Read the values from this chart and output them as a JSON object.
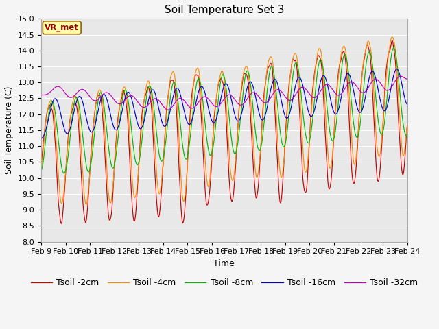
{
  "title": "Soil Temperature Set 3",
  "xlabel": "Time",
  "ylabel": "Soil Temperature (C)",
  "ylim": [
    8.0,
    15.0
  ],
  "yticks": [
    8.0,
    8.5,
    9.0,
    9.5,
    10.0,
    10.5,
    11.0,
    11.5,
    12.0,
    12.5,
    13.0,
    13.5,
    14.0,
    14.5,
    15.0
  ],
  "xtick_labels": [
    "Feb 9",
    "Feb 10",
    "Feb 11",
    "Feb 12",
    "Feb 13",
    "Feb 14",
    "Feb 15",
    "Feb 16",
    "Feb 17",
    "Feb 18",
    "Feb 19",
    "Feb 20",
    "Feb 21",
    "Feb 22",
    "Feb 23",
    "Feb 24"
  ],
  "legend_labels": [
    "Tsoil -2cm",
    "Tsoil -4cm",
    "Tsoil -8cm",
    "Tsoil -16cm",
    "Tsoil -32cm"
  ],
  "line_colors": [
    "#cc0000",
    "#ff8c00",
    "#00bb00",
    "#0000cc",
    "#bb00bb"
  ],
  "annotation_text": "VR_met",
  "annotation_color": "#990000",
  "annotation_bg": "#ffffaa",
  "plot_bg": "#e8e8e8",
  "grid_color": "#ffffff",
  "title_fontsize": 11,
  "axis_fontsize": 9,
  "tick_fontsize": 8,
  "legend_fontsize": 9
}
